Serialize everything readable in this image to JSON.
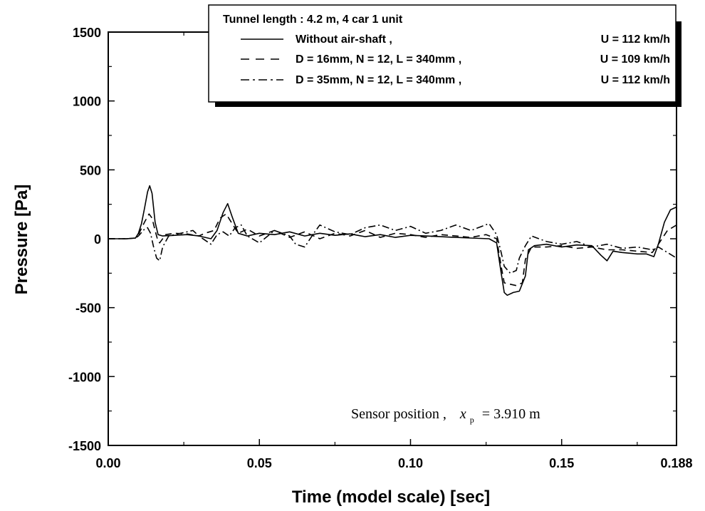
{
  "chart_data": {
    "type": "line",
    "xlabel": "Time (model scale) [sec]",
    "ylabel": "Pressure [Pa]",
    "xlim": [
      0,
      0.188
    ],
    "ylim": [
      -1500,
      1500
    ],
    "x_ticks": [
      0,
      0.05,
      0.1,
      0.15,
      0.188
    ],
    "x_tick_labels": [
      "0.00",
      "0.05",
      "0.10",
      "0.15",
      "0.188"
    ],
    "y_ticks": [
      1500,
      1000,
      500,
      0,
      -500,
      -1000,
      -1500
    ],
    "y_tick_labels": [
      "1500",
      "1000",
      "500",
      "0",
      "-500",
      "-1000",
      "-1500"
    ],
    "grid": false,
    "legend_position": "top-right",
    "legend_title": "Tunnel length : 4.2 m,  4 car 1 unit",
    "annotation": {
      "prefix": "Sensor position ,",
      "var": "x",
      "sub": "p",
      "value": "= 3.910 m"
    },
    "series": [
      {
        "name": "Without air-shaft ,",
        "speed": "U = 112 km/h",
        "style": "solid",
        "points": [
          [
            0,
            0
          ],
          [
            0.006,
            0
          ],
          [
            0.009,
            5
          ],
          [
            0.01,
            40
          ],
          [
            0.011,
            110
          ],
          [
            0.012,
            220
          ],
          [
            0.013,
            340
          ],
          [
            0.0137,
            385
          ],
          [
            0.0145,
            330
          ],
          [
            0.0155,
            120
          ],
          [
            0.0165,
            30
          ],
          [
            0.018,
            20
          ],
          [
            0.022,
            25
          ],
          [
            0.026,
            30
          ],
          [
            0.03,
            20
          ],
          [
            0.034,
            0
          ],
          [
            0.036,
            60
          ],
          [
            0.038,
            190
          ],
          [
            0.0395,
            255
          ],
          [
            0.041,
            160
          ],
          [
            0.043,
            40
          ],
          [
            0.046,
            20
          ],
          [
            0.05,
            40
          ],
          [
            0.055,
            30
          ],
          [
            0.06,
            50
          ],
          [
            0.065,
            20
          ],
          [
            0.07,
            40
          ],
          [
            0.075,
            25
          ],
          [
            0.08,
            35
          ],
          [
            0.085,
            15
          ],
          [
            0.09,
            30
          ],
          [
            0.095,
            10
          ],
          [
            0.1,
            25
          ],
          [
            0.105,
            20
          ],
          [
            0.11,
            15
          ],
          [
            0.115,
            10
          ],
          [
            0.12,
            5
          ],
          [
            0.126,
            0
          ],
          [
            0.1285,
            -30
          ],
          [
            0.13,
            -250
          ],
          [
            0.131,
            -390
          ],
          [
            0.132,
            -410
          ],
          [
            0.134,
            -390
          ],
          [
            0.136,
            -380
          ],
          [
            0.138,
            -270
          ],
          [
            0.139,
            -80
          ],
          [
            0.141,
            -50
          ],
          [
            0.145,
            -40
          ],
          [
            0.15,
            -60
          ],
          [
            0.155,
            -45
          ],
          [
            0.16,
            -50
          ],
          [
            0.163,
            -120
          ],
          [
            0.165,
            -160
          ],
          [
            0.167,
            -90
          ],
          [
            0.17,
            -100
          ],
          [
            0.175,
            -110
          ],
          [
            0.178,
            -110
          ],
          [
            0.1805,
            -130
          ],
          [
            0.182,
            -40
          ],
          [
            0.184,
            120
          ],
          [
            0.186,
            210
          ],
          [
            0.188,
            230
          ]
        ]
      },
      {
        "name": "D = 16mm, N = 12, L = 340mm ,",
        "speed": "U = 109 km/h",
        "style": "dashed",
        "points": [
          [
            0,
            0
          ],
          [
            0.006,
            0
          ],
          [
            0.009,
            5
          ],
          [
            0.01,
            30
          ],
          [
            0.012,
            120
          ],
          [
            0.0135,
            180
          ],
          [
            0.0145,
            150
          ],
          [
            0.0155,
            60
          ],
          [
            0.0165,
            -20
          ],
          [
            0.017,
            -30
          ],
          [
            0.019,
            30
          ],
          [
            0.022,
            40
          ],
          [
            0.026,
            35
          ],
          [
            0.03,
            20
          ],
          [
            0.032,
            40
          ],
          [
            0.035,
            60
          ],
          [
            0.037,
            150
          ],
          [
            0.039,
            180
          ],
          [
            0.041,
            110
          ],
          [
            0.043,
            40
          ],
          [
            0.046,
            70
          ],
          [
            0.05,
            20
          ],
          [
            0.055,
            60
          ],
          [
            0.06,
            10
          ],
          [
            0.065,
            50
          ],
          [
            0.07,
            0
          ],
          [
            0.075,
            40
          ],
          [
            0.08,
            20
          ],
          [
            0.085,
            60
          ],
          [
            0.09,
            10
          ],
          [
            0.095,
            40
          ],
          [
            0.1,
            30
          ],
          [
            0.105,
            10
          ],
          [
            0.11,
            30
          ],
          [
            0.115,
            20
          ],
          [
            0.12,
            10
          ],
          [
            0.125,
            30
          ],
          [
            0.1285,
            0
          ],
          [
            0.13,
            -200
          ],
          [
            0.131,
            -320
          ],
          [
            0.133,
            -330
          ],
          [
            0.135,
            -340
          ],
          [
            0.137,
            -320
          ],
          [
            0.138,
            -150
          ],
          [
            0.14,
            -60
          ],
          [
            0.145,
            -60
          ],
          [
            0.15,
            -50
          ],
          [
            0.155,
            -70
          ],
          [
            0.16,
            -60
          ],
          [
            0.165,
            -80
          ],
          [
            0.17,
            -80
          ],
          [
            0.175,
            -90
          ],
          [
            0.18,
            -100
          ],
          [
            0.182,
            -40
          ],
          [
            0.185,
            60
          ],
          [
            0.188,
            100
          ]
        ]
      },
      {
        "name": "D = 35mm, N = 12, L = 340mm ,",
        "speed": "U = 112 km/h",
        "style": "dashdot",
        "points": [
          [
            0,
            0
          ],
          [
            0.006,
            0
          ],
          [
            0.009,
            5
          ],
          [
            0.01,
            20
          ],
          [
            0.012,
            70
          ],
          [
            0.013,
            80
          ],
          [
            0.014,
            40
          ],
          [
            0.015,
            -60
          ],
          [
            0.016,
            -140
          ],
          [
            0.017,
            -160
          ],
          [
            0.018,
            -60
          ],
          [
            0.02,
            20
          ],
          [
            0.024,
            40
          ],
          [
            0.028,
            60
          ],
          [
            0.03,
            20
          ],
          [
            0.034,
            -40
          ],
          [
            0.036,
            30
          ],
          [
            0.038,
            50
          ],
          [
            0.04,
            20
          ],
          [
            0.042,
            80
          ],
          [
            0.044,
            100
          ],
          [
            0.046,
            20
          ],
          [
            0.05,
            -30
          ],
          [
            0.055,
            60
          ],
          [
            0.06,
            20
          ],
          [
            0.062,
            -40
          ],
          [
            0.065,
            -60
          ],
          [
            0.068,
            40
          ],
          [
            0.07,
            100
          ],
          [
            0.075,
            50
          ],
          [
            0.08,
            30
          ],
          [
            0.085,
            80
          ],
          [
            0.09,
            100
          ],
          [
            0.095,
            60
          ],
          [
            0.1,
            90
          ],
          [
            0.105,
            40
          ],
          [
            0.11,
            60
          ],
          [
            0.115,
            100
          ],
          [
            0.12,
            60
          ],
          [
            0.126,
            110
          ],
          [
            0.1285,
            30
          ],
          [
            0.13,
            -100
          ],
          [
            0.131,
            -200
          ],
          [
            0.133,
            -250
          ],
          [
            0.135,
            -230
          ],
          [
            0.136,
            -140
          ],
          [
            0.138,
            -50
          ],
          [
            0.14,
            20
          ],
          [
            0.145,
            -20
          ],
          [
            0.15,
            -40
          ],
          [
            0.155,
            -20
          ],
          [
            0.16,
            -60
          ],
          [
            0.165,
            -40
          ],
          [
            0.17,
            -70
          ],
          [
            0.175,
            -60
          ],
          [
            0.18,
            -80
          ],
          [
            0.182,
            -60
          ],
          [
            0.185,
            -100
          ],
          [
            0.188,
            -140
          ]
        ]
      }
    ]
  }
}
